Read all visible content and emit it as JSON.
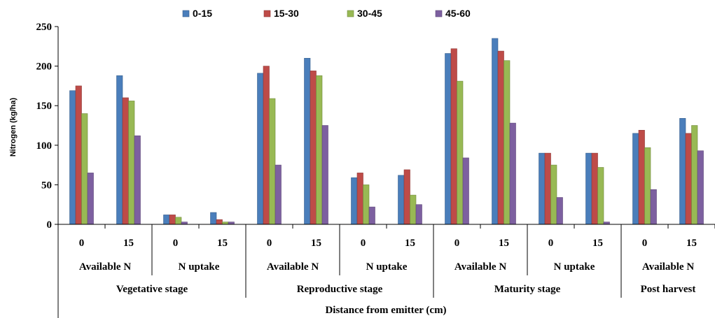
{
  "chart_data": {
    "type": "bar",
    "xlabel": "Distance from emitter  (cm)",
    "ylabel": "Nitrogen (kg/ha)",
    "ylim": [
      0,
      250
    ],
    "yticks": [
      0,
      50,
      100,
      150,
      200,
      250
    ],
    "grid": false,
    "legend_position": "top",
    "categories": [
      "0",
      "15",
      "0",
      "15",
      "0",
      "15",
      "0",
      "15",
      "0",
      "15",
      "0",
      "15",
      "0",
      "15"
    ],
    "level2": [
      {
        "label": "Available N",
        "span": 2
      },
      {
        "label": "N uptake",
        "span": 2
      },
      {
        "label": "Available N",
        "span": 2
      },
      {
        "label": "N uptake",
        "span": 2
      },
      {
        "label": "Available N",
        "span": 2
      },
      {
        "label": "N uptake",
        "span": 2
      },
      {
        "label": "Available N",
        "span": 2
      }
    ],
    "level3": [
      {
        "label": "Vegetative stage",
        "span": 4
      },
      {
        "label": "Reproductive stage",
        "span": 4
      },
      {
        "label": "Maturity stage",
        "span": 4
      },
      {
        "label": "Post harvest",
        "span": 2
      }
    ],
    "series": [
      {
        "name": "0-15",
        "color": "#4a7ebb",
        "values": [
          169,
          188,
          12,
          15,
          191,
          210,
          59,
          62,
          216,
          235,
          90,
          90,
          115,
          134
        ]
      },
      {
        "name": "15-30",
        "color": "#be4b48",
        "values": [
          175,
          160,
          12,
          6,
          200,
          194,
          65,
          69,
          222,
          219,
          90,
          90,
          119,
          115
        ]
      },
      {
        "name": "30-45",
        "color": "#98b954",
        "values": [
          140,
          156,
          9,
          3,
          159,
          188,
          50,
          37,
          181,
          207,
          75,
          72,
          97,
          125
        ]
      },
      {
        "name": "45-60",
        "color": "#7d60a0",
        "values": [
          65,
          112,
          3,
          3,
          75,
          125,
          22,
          25,
          84,
          128,
          34,
          3,
          44,
          93
        ]
      }
    ]
  }
}
